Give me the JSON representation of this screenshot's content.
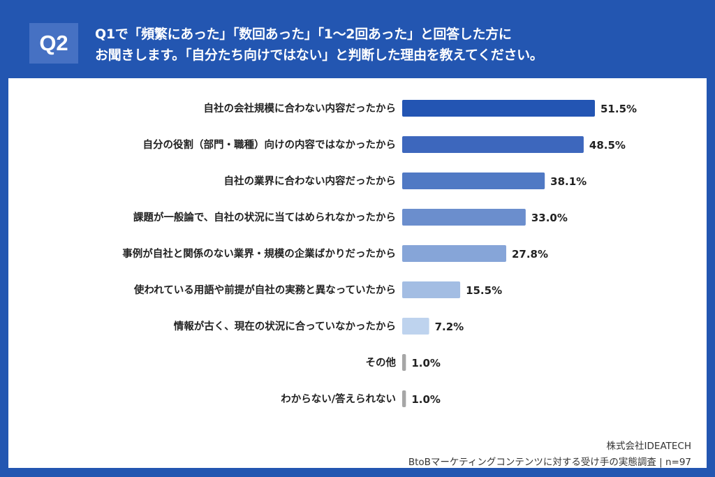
{
  "header": {
    "question_number": "Q2",
    "question_line1": "Q1で「頻繁にあった」「数回あった」「1〜2回あった」と回答した方に",
    "question_line2": "お聞きします。「自分たち向けではない」と判断した理由を教えてください。"
  },
  "footer": {
    "company": "株式会社IDEATECH",
    "survey": "BtoBマーケティングコンテンツに対する受け手の実態調査 | n=97"
  },
  "chart_data": {
    "type": "bar",
    "orientation": "horizontal",
    "categories": [
      "自社の会社規模に合わない内容だったから",
      "自分の役割（部門・職種）向けの内容ではなかったから",
      "自社の業界に合わない内容だったから",
      "課題が一般論で、自社の状況に当てはめられなかったから",
      "事例が自社と関係のない業界・規模の企業ばかりだったから",
      "使われている用語や前提が自社の実務と異なっていたから",
      "情報が古く、現在の状況に合っていなかったから",
      "その他",
      "わからない/答えられない"
    ],
    "values": [
      51.5,
      48.5,
      38.1,
      33.0,
      27.8,
      15.5,
      7.2,
      1.0,
      1.0
    ],
    "data_labels": [
      "51.5%",
      "48.5%",
      "38.1%",
      "33.0%",
      "27.8%",
      "15.5%",
      "7.2%",
      "1.0%",
      "1.0%"
    ],
    "colors": [
      "#2355b3",
      "#3d67bd",
      "#5079c4",
      "#6b8ecd",
      "#86a5d8",
      "#a3bde3",
      "#bed3ee",
      "#a6a6a6",
      "#a6a6a6"
    ],
    "unit": "%",
    "grid": false,
    "legend": "none"
  }
}
